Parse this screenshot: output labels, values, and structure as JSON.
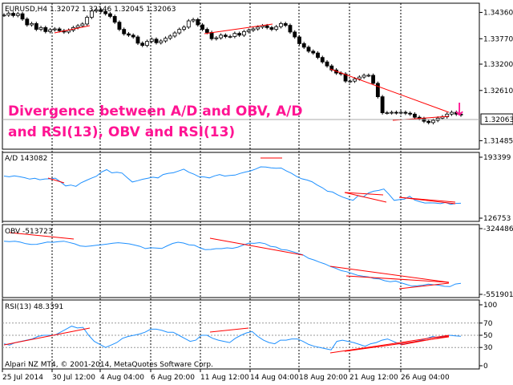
{
  "price_panel": {
    "header": "EURUSD,H4  1.32072 1.32146 1.32045 1.32063",
    "axis_labels": [
      "1.34360",
      "1.33770",
      "1.33200",
      "1.32610",
      "1.32063",
      "1.31485"
    ],
    "current_price": "1.32063",
    "annotation_line1": "Divergence between A/D and OBV, A/D",
    "annotation_line2": "and RSI(13), OBV and RSI(13)",
    "arrow_glyph": "↓"
  },
  "ad_panel": {
    "header": "A/D 143082",
    "axis_labels": [
      "193399",
      "126753"
    ]
  },
  "obv_panel": {
    "header": "OBV -513723",
    "axis_labels": [
      "-324486",
      "-551901"
    ]
  },
  "rsi_panel": {
    "header": "RSI(13) 48.3391",
    "axis_labels": [
      "100",
      "70",
      "50",
      "30",
      "0"
    ]
  },
  "copyright": "Alpari NZ MT4, © 2001-2014, MetaQuotes Software Corp.",
  "time_axis": [
    "25 Jul 2014",
    "30 Jul 12:00",
    "4 Aug 04:00",
    "6 Aug 20:00",
    "11 Aug 12:00",
    "14 Aug 04:00",
    "18 Aug 20:00",
    "21 Aug 12:00",
    "26 Aug 04:00"
  ],
  "colors": {
    "candles": "#000000",
    "indicator": "#1e90ff",
    "trendline": "#ff0000",
    "annotation": "#ff1493",
    "grid": "#000000"
  },
  "chart_data": [
    {
      "type": "candlestick",
      "title": "EURUSD,H4",
      "ylim": [
        1.3133,
        1.3453
      ],
      "close": [
        1.343,
        1.3434,
        1.3429,
        1.3433,
        1.3421,
        1.3408,
        1.3411,
        1.3398,
        1.3402,
        1.3393,
        1.3397,
        1.3399,
        1.3395,
        1.3392,
        1.3396,
        1.3402,
        1.3406,
        1.341,
        1.3425,
        1.3439,
        1.3442,
        1.3438,
        1.3433,
        1.3427,
        1.3414,
        1.3398,
        1.3388,
        1.3385,
        1.3381,
        1.3367,
        1.3362,
        1.3371,
        1.3376,
        1.3368,
        1.3372,
        1.3378,
        1.3383,
        1.339,
        1.3398,
        1.3403,
        1.3417,
        1.342,
        1.3408,
        1.3398,
        1.3391,
        1.3377,
        1.3379,
        1.3385,
        1.3382,
        1.3382,
        1.3389,
        1.3385,
        1.3393,
        1.3396,
        1.3399,
        1.3403,
        1.3406,
        1.3402,
        1.3398,
        1.3404,
        1.3411,
        1.3407,
        1.3392,
        1.3381,
        1.3366,
        1.3358,
        1.3349,
        1.3345,
        1.3335,
        1.3325,
        1.3316,
        1.3307,
        1.33,
        1.3298,
        1.3282,
        1.3282,
        1.3287,
        1.3291,
        1.3295,
        1.3295,
        1.3277,
        1.3247,
        1.3211,
        1.3211,
        1.3212,
        1.3211,
        1.3212,
        1.321,
        1.3208,
        1.3201,
        1.3198,
        1.3192,
        1.3189,
        1.3194,
        1.3199,
        1.3202,
        1.3208,
        1.3212,
        1.3208,
        1.3206
      ]
    },
    {
      "type": "line",
      "title": "A/D 143082",
      "ylim": [
        126753,
        193399
      ],
      "values": [
        172800,
        172000,
        173000,
        172200,
        171000,
        169500,
        170300,
        168800,
        169600,
        169800,
        170500,
        166500,
        162000,
        163000,
        161600,
        165400,
        168000,
        170400,
        172600,
        177300,
        179800,
        176300,
        177000,
        176000,
        171000,
        166300,
        167700,
        169300,
        170300,
        171600,
        170800,
        174500,
        175800,
        176400,
        178300,
        180300,
        177000,
        174800,
        172000,
        171800,
        170800,
        173000,
        174400,
        172800,
        173400,
        173800,
        175700,
        177200,
        178400,
        180400,
        182900,
        182700,
        181700,
        181400,
        181600,
        178400,
        175800,
        172300,
        169800,
        168500,
        166600,
        163000,
        160100,
        156200,
        155300,
        152300,
        149700,
        147800,
        146300,
        151300,
        150000,
        154300,
        156200,
        157100,
        158600,
        152800,
        146200,
        147000,
        147500,
        150700,
        146600,
        144700,
        143300,
        143500,
        143300,
        142600,
        143900,
        141800,
        142900,
        143082
      ]
    },
    {
      "type": "line",
      "title": "OBV -513723",
      "ylim": [
        -551901,
        -324486
      ],
      "values": [
        -368200,
        -369600,
        -368300,
        -371300,
        -376700,
        -379200,
        -378800,
        -375200,
        -371100,
        -372000,
        -369500,
        -368100,
        -372600,
        -377200,
        -384500,
        -386300,
        -384300,
        -382100,
        -380100,
        -377900,
        -375000,
        -373400,
        -375100,
        -377300,
        -381300,
        -385700,
        -393600,
        -390700,
        -391600,
        -393400,
        -384200,
        -375800,
        -371600,
        -374400,
        -380500,
        -382300,
        -390800,
        -397400,
        -396600,
        -393700,
        -393800,
        -391100,
        -392800,
        -388600,
        -381400,
        -374800,
        -375600,
        -373000,
        -376600,
        -385700,
        -388300,
        -397000,
        -398800,
        -403800,
        -409700,
        -415700,
        -427100,
        -433000,
        -440500,
        -446800,
        -455500,
        -461900,
        -469700,
        -473700,
        -479900,
        -485800,
        -489200,
        -491800,
        -497100,
        -498600,
        -504700,
        -508400,
        -506000,
        -512000,
        -517500,
        -523600,
        -522300,
        -520400,
        -516300,
        -518500,
        -520200,
        -524100,
        -525100,
        -516000,
        -513723
      ]
    },
    {
      "type": "line",
      "title": "RSI(13) 48.3391",
      "ylim": [
        0,
        100
      ],
      "values": [
        36,
        34,
        38,
        40,
        42,
        44,
        48,
        50,
        50,
        50,
        55,
        60,
        65,
        62,
        63,
        50,
        40,
        35,
        30,
        34,
        38,
        45,
        48,
        50,
        52,
        55,
        60,
        60,
        58,
        55,
        55,
        50,
        45,
        40,
        42,
        50,
        50,
        45,
        42,
        40,
        38,
        45,
        50,
        54,
        56,
        48,
        42,
        38,
        36,
        42,
        42,
        44,
        44,
        40,
        35,
        32,
        30,
        28,
        26,
        40,
        42,
        40,
        38,
        35,
        32,
        36,
        38,
        42,
        44,
        40,
        36,
        35,
        38,
        40,
        42,
        45,
        48,
        46,
        48,
        50,
        49,
        48.3
      ]
    }
  ]
}
